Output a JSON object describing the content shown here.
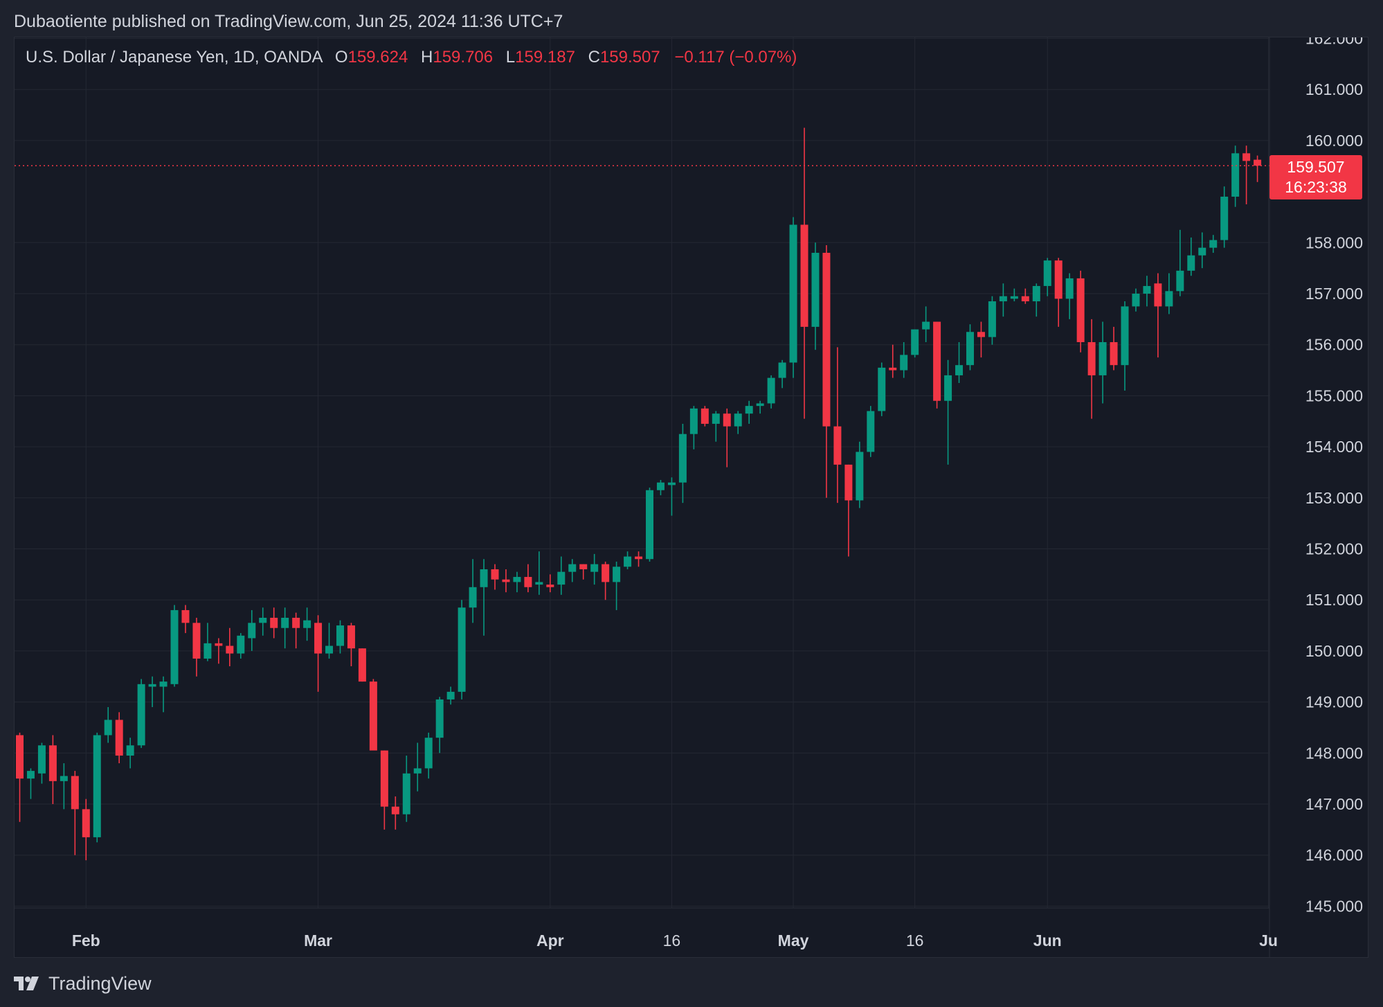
{
  "header": {
    "published": "Dubaotiente published on TradingView.com, Jun 25, 2024 11:36 UTC+7"
  },
  "legend": {
    "symbol": "U.S. Dollar / Japanese Yen, 1D, OANDA",
    "open_label": "O",
    "open": "159.624",
    "high_label": "H",
    "high": "159.706",
    "low_label": "L",
    "low": "159.187",
    "close_label": "C",
    "close": "159.507",
    "change": "−0.117 (−0.07%)"
  },
  "price_tag": {
    "price": "159.507",
    "countdown": "16:23:38"
  },
  "footer": {
    "brand": "TradingView"
  },
  "colors": {
    "background": "#161a25",
    "up": "#089981",
    "down": "#f23645",
    "grid": "#242833",
    "text": "#d1d4dc"
  },
  "chart_data": {
    "type": "candlestick",
    "ylim": [
      145.0,
      162.0
    ],
    "y_ticks": [
      "162.000",
      "161.000",
      "160.000",
      "158.000",
      "157.000",
      "156.000",
      "155.000",
      "154.000",
      "153.000",
      "152.000",
      "151.000",
      "150.000",
      "149.000",
      "148.000",
      "147.000",
      "146.000",
      "145.000"
    ],
    "x_ticks": [
      {
        "label": "Feb",
        "index": 6
      },
      {
        "label": "Mar",
        "index": 27
      },
      {
        "label": "Apr",
        "index": 48
      },
      {
        "label": "16",
        "index": 59
      },
      {
        "label": "May",
        "index": 70
      },
      {
        "label": "16",
        "index": 81
      },
      {
        "label": "Jun",
        "index": 93
      },
      {
        "label": "Ju",
        "index": 113
      }
    ],
    "last_price_line": 159.507,
    "candles": [
      [
        148.35,
        148.4,
        146.65,
        147.5
      ],
      [
        147.5,
        147.7,
        147.1,
        147.65
      ],
      [
        147.6,
        148.2,
        147.4,
        148.15
      ],
      [
        148.15,
        148.35,
        147.0,
        147.45
      ],
      [
        147.45,
        147.8,
        146.9,
        147.55
      ],
      [
        147.55,
        147.65,
        146.0,
        146.9
      ],
      [
        146.9,
        147.1,
        145.9,
        146.35
      ],
      [
        146.35,
        148.4,
        146.25,
        148.35
      ],
      [
        148.35,
        148.9,
        148.2,
        148.65
      ],
      [
        148.65,
        148.8,
        147.8,
        147.95
      ],
      [
        147.95,
        148.3,
        147.7,
        148.15
      ],
      [
        148.15,
        149.45,
        148.1,
        149.35
      ],
      [
        149.3,
        149.5,
        148.9,
        149.35
      ],
      [
        149.3,
        149.5,
        148.8,
        149.4
      ],
      [
        149.35,
        150.9,
        149.3,
        150.8
      ],
      [
        150.8,
        150.9,
        150.35,
        150.55
      ],
      [
        150.55,
        150.65,
        149.5,
        149.85
      ],
      [
        149.85,
        150.55,
        149.8,
        150.15
      ],
      [
        150.15,
        150.25,
        149.75,
        150.1
      ],
      [
        150.1,
        150.45,
        149.7,
        149.95
      ],
      [
        149.95,
        150.35,
        149.85,
        150.3
      ],
      [
        150.25,
        150.8,
        150.0,
        150.55
      ],
      [
        150.55,
        150.85,
        150.3,
        150.65
      ],
      [
        150.65,
        150.85,
        150.25,
        150.45
      ],
      [
        150.45,
        150.85,
        150.05,
        150.65
      ],
      [
        150.65,
        150.75,
        150.05,
        150.45
      ],
      [
        150.45,
        150.85,
        150.2,
        150.6
      ],
      [
        150.55,
        150.7,
        149.2,
        149.95
      ],
      [
        149.95,
        150.55,
        149.85,
        150.1
      ],
      [
        150.1,
        150.6,
        149.95,
        150.5
      ],
      [
        150.5,
        150.55,
        149.7,
        150.05
      ],
      [
        150.05,
        150.05,
        149.4,
        149.4
      ],
      [
        149.4,
        149.45,
        148.1,
        148.05
      ],
      [
        148.05,
        148.05,
        146.5,
        146.95
      ],
      [
        146.95,
        147.15,
        146.5,
        146.8
      ],
      [
        146.8,
        147.95,
        146.65,
        147.6
      ],
      [
        147.6,
        148.2,
        147.25,
        147.7
      ],
      [
        147.7,
        148.4,
        147.5,
        148.3
      ],
      [
        148.3,
        149.1,
        148.0,
        149.05
      ],
      [
        149.05,
        149.3,
        148.95,
        149.2
      ],
      [
        149.2,
        151.0,
        149.05,
        150.85
      ],
      [
        150.85,
        151.8,
        150.55,
        151.25
      ],
      [
        151.25,
        151.8,
        150.3,
        151.6
      ],
      [
        151.6,
        151.7,
        151.2,
        151.4
      ],
      [
        151.4,
        151.6,
        151.15,
        151.35
      ],
      [
        151.35,
        151.55,
        151.15,
        151.45
      ],
      [
        151.45,
        151.7,
        151.15,
        151.25
      ],
      [
        151.3,
        151.95,
        151.1,
        151.35
      ],
      [
        151.3,
        151.5,
        151.15,
        151.25
      ],
      [
        151.3,
        151.85,
        151.1,
        151.55
      ],
      [
        151.55,
        151.8,
        151.35,
        151.7
      ],
      [
        151.7,
        151.7,
        151.4,
        151.6
      ],
      [
        151.55,
        151.9,
        151.3,
        151.7
      ],
      [
        151.7,
        151.75,
        151.0,
        151.35
      ],
      [
        151.35,
        151.75,
        150.8,
        151.65
      ],
      [
        151.65,
        151.95,
        151.6,
        151.85
      ],
      [
        151.85,
        151.95,
        151.65,
        151.8
      ],
      [
        151.8,
        153.2,
        151.75,
        153.15
      ],
      [
        153.15,
        153.35,
        153.05,
        153.3
      ],
      [
        153.25,
        153.4,
        152.65,
        153.3
      ],
      [
        153.3,
        154.45,
        152.9,
        154.25
      ],
      [
        154.25,
        154.8,
        153.95,
        154.75
      ],
      [
        154.75,
        154.8,
        154.4,
        154.45
      ],
      [
        154.45,
        154.7,
        154.1,
        154.65
      ],
      [
        154.65,
        154.75,
        153.6,
        154.4
      ],
      [
        154.4,
        154.7,
        154.25,
        154.65
      ],
      [
        154.65,
        154.9,
        154.45,
        154.8
      ],
      [
        154.8,
        154.9,
        154.65,
        154.85
      ],
      [
        154.85,
        155.4,
        154.75,
        155.35
      ],
      [
        155.35,
        155.7,
        155.15,
        155.65
      ],
      [
        155.65,
        158.5,
        155.35,
        158.35
      ],
      [
        158.35,
        160.25,
        154.55,
        156.35
      ],
      [
        156.35,
        158.0,
        155.9,
        157.8
      ],
      [
        157.8,
        157.95,
        153.0,
        154.4
      ],
      [
        154.4,
        155.95,
        152.9,
        153.65
      ],
      [
        153.65,
        153.65,
        151.85,
        152.95
      ],
      [
        152.95,
        154.1,
        152.8,
        153.9
      ],
      [
        153.9,
        154.8,
        153.8,
        154.7
      ],
      [
        154.7,
        155.65,
        154.6,
        155.55
      ],
      [
        155.55,
        156.0,
        155.35,
        155.5
      ],
      [
        155.5,
        156.05,
        155.35,
        155.8
      ],
      [
        155.8,
        156.3,
        155.75,
        156.3
      ],
      [
        156.3,
        156.75,
        156.05,
        156.45
      ],
      [
        156.45,
        156.45,
        154.75,
        154.9
      ],
      [
        154.9,
        155.7,
        153.65,
        155.4
      ],
      [
        155.4,
        156.05,
        155.25,
        155.6
      ],
      [
        155.6,
        156.4,
        155.5,
        156.25
      ],
      [
        156.25,
        156.45,
        155.75,
        156.15
      ],
      [
        156.15,
        156.95,
        156.0,
        156.85
      ],
      [
        156.85,
        157.2,
        156.55,
        156.95
      ],
      [
        156.9,
        157.1,
        156.85,
        156.95
      ],
      [
        156.95,
        157.1,
        156.8,
        156.85
      ],
      [
        156.85,
        157.2,
        156.55,
        157.15
      ],
      [
        157.15,
        157.7,
        156.95,
        157.65
      ],
      [
        157.65,
        157.7,
        156.35,
        156.9
      ],
      [
        156.9,
        157.4,
        156.5,
        157.3
      ],
      [
        157.3,
        157.45,
        155.85,
        156.05
      ],
      [
        156.05,
        156.5,
        154.55,
        155.4
      ],
      [
        155.4,
        156.45,
        154.85,
        156.05
      ],
      [
        156.05,
        156.35,
        155.5,
        155.6
      ],
      [
        155.6,
        156.85,
        155.1,
        156.75
      ],
      [
        156.75,
        157.1,
        156.65,
        157.0
      ],
      [
        157.0,
        157.35,
        156.75,
        157.15
      ],
      [
        157.2,
        157.4,
        155.75,
        156.75
      ],
      [
        156.75,
        157.4,
        156.6,
        157.05
      ],
      [
        157.05,
        158.25,
        156.95,
        157.45
      ],
      [
        157.45,
        158.1,
        157.35,
        157.75
      ],
      [
        157.75,
        158.2,
        157.5,
        157.9
      ],
      [
        157.9,
        158.15,
        157.8,
        158.05
      ],
      [
        158.05,
        159.1,
        157.9,
        158.9
      ],
      [
        158.9,
        159.9,
        158.7,
        159.75
      ],
      [
        159.75,
        159.9,
        158.75,
        159.6
      ],
      [
        159.624,
        159.706,
        159.187,
        159.507
      ]
    ]
  }
}
